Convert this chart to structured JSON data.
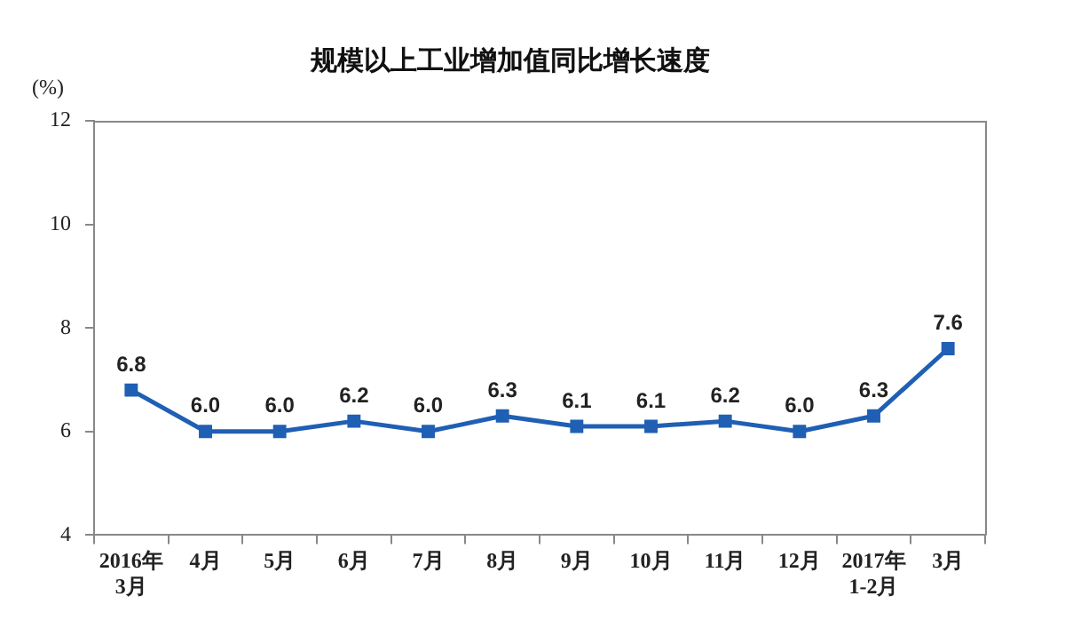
{
  "chart_data": {
    "type": "line",
    "title": "规模以上工业增加值同比增长速度",
    "ylabel": "(%)",
    "categories": [
      "2016年\n3月",
      "4月",
      "5月",
      "6月",
      "7月",
      "8月",
      "9月",
      "10月",
      "11月",
      "12月",
      "2017年\n1-2月",
      "3月"
    ],
    "series": [
      {
        "color": "#1f5fb4",
        "values": [
          6.8,
          6.0,
          6.0,
          6.2,
          6.0,
          6.3,
          6.1,
          6.1,
          6.2,
          6.0,
          6.3,
          7.6
        ],
        "value_labels": [
          "6.8",
          "6.0",
          "6.0",
          "6.2",
          "6.0",
          "6.3",
          "6.1",
          "6.1",
          "6.2",
          "6.0",
          "6.3",
          "7.6"
        ]
      }
    ],
    "ylim": [
      4,
      12
    ],
    "yticks": [
      4,
      6,
      8,
      10,
      12
    ],
    "grid": false,
    "legend": false,
    "marker": "square",
    "line_style": "solid"
  }
}
